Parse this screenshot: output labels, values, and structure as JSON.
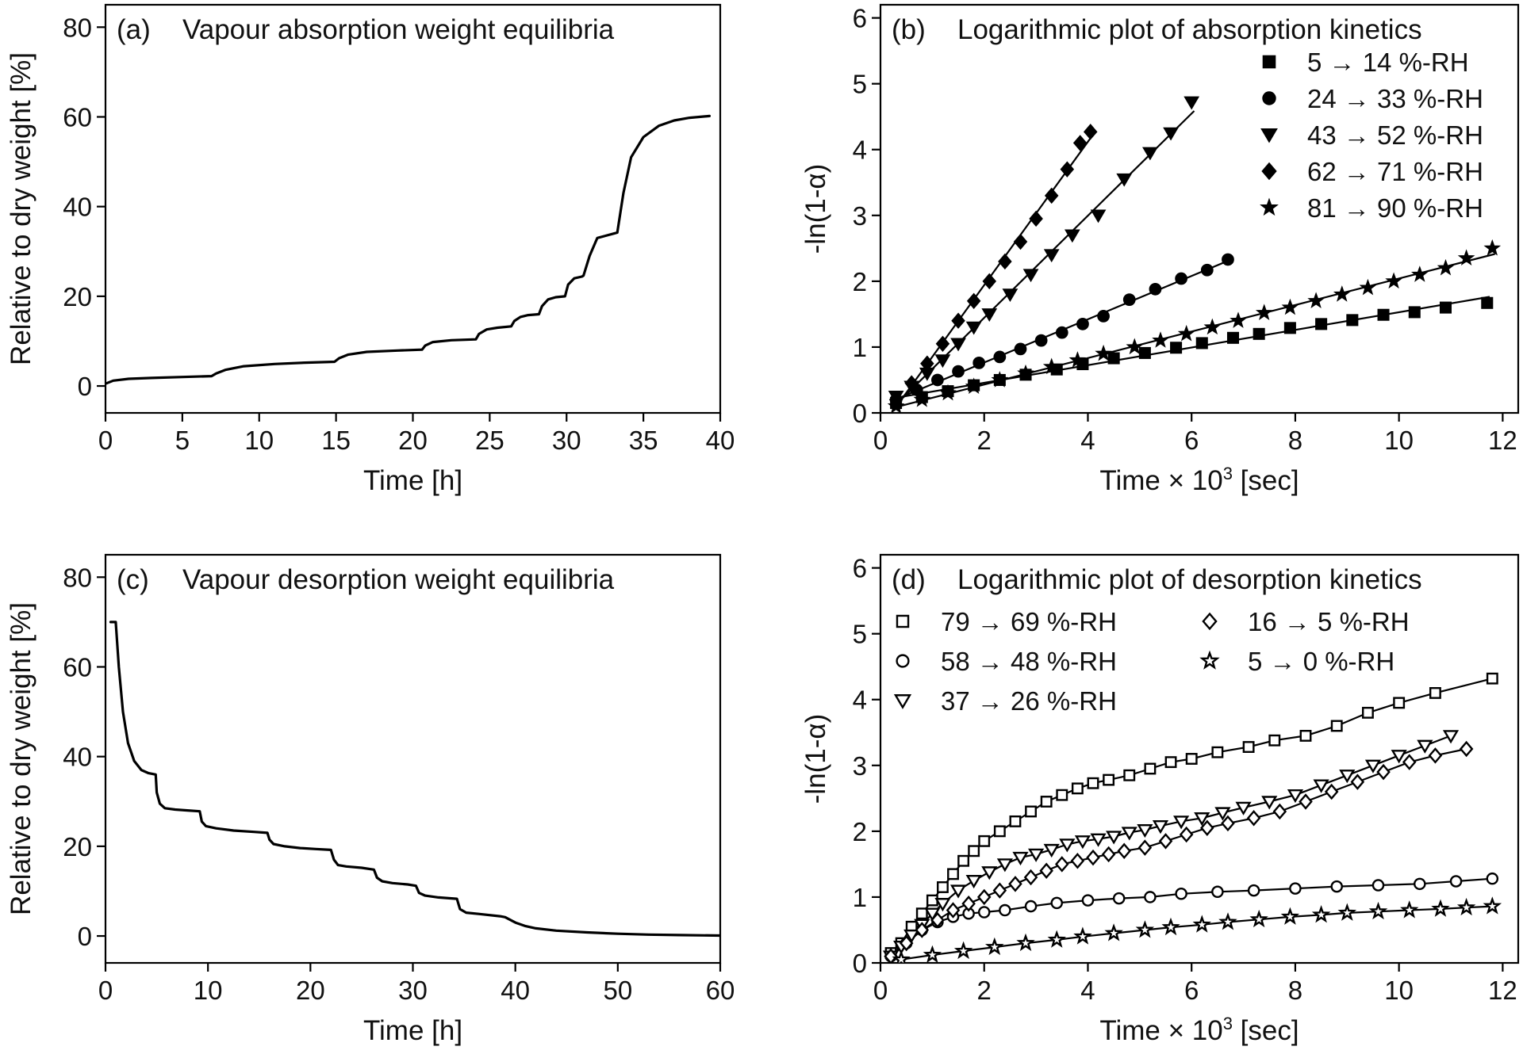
{
  "chart_data": [
    {
      "type": "line",
      "panel": "(a)",
      "title": "Vapour absorption weight equilibria",
      "xlabel": "Time [h]",
      "ylabel": "Relative to dry weight [%]",
      "xlim": [
        0,
        40
      ],
      "ylim": [
        -6,
        85
      ],
      "xticks": [
        0,
        5,
        10,
        15,
        20,
        25,
        30,
        35,
        40
      ],
      "yticks": [
        0,
        20,
        40,
        60,
        80
      ],
      "grid": false,
      "series": [
        {
          "x": [
            0,
            0.5,
            1.5,
            3,
            5,
            6.9,
            7.2,
            7.8,
            9,
            11,
            13,
            14.9,
            15.2,
            15.8,
            17,
            19,
            20.6,
            20.8,
            21.3,
            22.5,
            24.1,
            24.3,
            24.8,
            25.5,
            26.4,
            26.6,
            27,
            27.5,
            28.2,
            28.4,
            28.8,
            29.3,
            29.9,
            30.1,
            30.5,
            31,
            31.1,
            31.5,
            32,
            33.1,
            33.3,
            33.7,
            34.2,
            35,
            36,
            37,
            38,
            39.3
          ],
          "y": [
            0.5,
            1.2,
            1.6,
            1.8,
            2,
            2.2,
            2.8,
            3.6,
            4.4,
            4.9,
            5.2,
            5.4,
            6.2,
            7,
            7.6,
            7.9,
            8.1,
            9,
            9.8,
            10.2,
            10.4,
            11.6,
            12.6,
            13,
            13.3,
            14.5,
            15.4,
            15.8,
            16,
            17.8,
            19.3,
            19.8,
            20,
            22.6,
            24,
            24.4,
            24.6,
            29,
            33,
            34,
            34.2,
            43,
            51,
            55.5,
            58,
            59.2,
            59.8,
            60.2
          ]
        }
      ]
    },
    {
      "type": "scatter",
      "panel": "(b)",
      "title": "Logarithmic plot of absorption kinetics",
      "xlabel": "Time × 10",
      "xlabel_sup": "3",
      "xlabel_end": "[sec]",
      "ylabel": "-ln(1-α)",
      "xlim": [
        0,
        12.3
      ],
      "ylim": [
        0,
        6.2
      ],
      "xticks": [
        0,
        2,
        4,
        6,
        8,
        10,
        12
      ],
      "yticks": [
        0,
        1,
        2,
        3,
        4,
        5,
        6
      ],
      "grid": false,
      "legend": "top-right",
      "series": [
        {
          "name": "5 → 14 %-RH",
          "marker": "square-filled",
          "x": [
            0.3,
            0.8,
            1.3,
            1.8,
            2.3,
            2.8,
            3.4,
            3.9,
            4.5,
            5.1,
            5.7,
            6.2,
            6.8,
            7.3,
            7.9,
            8.5,
            9.1,
            9.7,
            10.3,
            10.9,
            11.7
          ],
          "y": [
            0.15,
            0.24,
            0.33,
            0.42,
            0.5,
            0.58,
            0.66,
            0.74,
            0.83,
            0.91,
            0.99,
            1.06,
            1.14,
            1.2,
            1.29,
            1.35,
            1.41,
            1.49,
            1.53,
            1.6,
            1.67
          ]
        },
        {
          "name": "24 → 33 %-RH",
          "marker": "circle-filled",
          "x": [
            0.3,
            0.7,
            1.1,
            1.5,
            1.9,
            2.3,
            2.7,
            3.1,
            3.5,
            3.9,
            4.3,
            4.8,
            5.3,
            5.8,
            6.3,
            6.7
          ],
          "y": [
            0.2,
            0.35,
            0.5,
            0.63,
            0.76,
            0.85,
            0.97,
            1.1,
            1.22,
            1.35,
            1.47,
            1.72,
            1.88,
            2.04,
            2.17,
            2.33
          ]
        },
        {
          "name": "43 → 52 %-RH",
          "marker": "triangle-down-filled",
          "x": [
            0.3,
            0.6,
            0.9,
            1.2,
            1.5,
            1.8,
            2.1,
            2.5,
            2.9,
            3.3,
            3.7,
            4.2,
            4.7,
            5.2,
            5.6,
            6.0
          ],
          "y": [
            0.25,
            0.4,
            0.6,
            0.8,
            1.05,
            1.3,
            1.5,
            1.8,
            2.1,
            2.4,
            2.7,
            3.0,
            3.55,
            3.95,
            4.25,
            4.72
          ]
        },
        {
          "name": "62 → 71 %-RH",
          "marker": "diamond-filled",
          "x": [
            0.3,
            0.6,
            0.9,
            1.2,
            1.5,
            1.8,
            2.1,
            2.4,
            2.7,
            3.0,
            3.3,
            3.6,
            3.85,
            4.05
          ],
          "y": [
            0.2,
            0.45,
            0.75,
            1.05,
            1.4,
            1.7,
            2.0,
            2.3,
            2.6,
            2.95,
            3.3,
            3.7,
            4.1,
            4.27
          ]
        },
        {
          "name": "81 → 90 %-RH",
          "marker": "star-filled",
          "x": [
            0.3,
            0.8,
            1.3,
            1.8,
            2.3,
            2.8,
            3.3,
            3.8,
            4.3,
            4.9,
            5.4,
            5.9,
            6.4,
            6.9,
            7.4,
            7.9,
            8.4,
            8.9,
            9.4,
            9.9,
            10.4,
            10.9,
            11.3,
            11.8
          ],
          "y": [
            0.1,
            0.2,
            0.3,
            0.4,
            0.5,
            0.6,
            0.7,
            0.8,
            0.9,
            1.0,
            1.1,
            1.2,
            1.3,
            1.4,
            1.52,
            1.6,
            1.7,
            1.8,
            1.9,
            2.0,
            2.1,
            2.2,
            2.35,
            2.5
          ]
        }
      ]
    },
    {
      "type": "line",
      "panel": "(c)",
      "title": "Vapour desorption weight equilibria",
      "xlabel": "Time [h]",
      "ylabel": "Relative to dry weight [%]",
      "xlim": [
        0,
        60
      ],
      "ylim": [
        -6,
        85
      ],
      "xticks": [
        0,
        10,
        20,
        30,
        40,
        50,
        60
      ],
      "yticks": [
        0,
        20,
        40,
        60,
        80
      ],
      "grid": false,
      "series": [
        {
          "x": [
            0.5,
            1.0,
            1.3,
            1.7,
            2.2,
            2.8,
            3.5,
            4.2,
            4.9,
            5.0,
            5.3,
            5.8,
            6.8,
            8,
            9.2,
            9.4,
            9.8,
            10.8,
            12.5,
            14.5,
            15.8,
            16,
            16.4,
            17.5,
            19,
            20.5,
            22,
            22.3,
            22.7,
            23.5,
            25,
            26.2,
            26.5,
            27,
            28,
            29.5,
            30.3,
            30.6,
            31.2,
            32.5,
            34.3,
            34.6,
            35.2,
            36.5,
            38.5,
            39,
            40,
            41,
            42,
            44,
            47,
            50,
            53,
            56,
            60
          ],
          "y": [
            70,
            70,
            60,
            50,
            43,
            39,
            37,
            36.3,
            36,
            32,
            29.5,
            28.5,
            28.2,
            28,
            27.8,
            25.5,
            24.5,
            24,
            23.5,
            23.2,
            23,
            21.5,
            20.5,
            20,
            19.6,
            19.4,
            19.2,
            17,
            15.8,
            15.5,
            15.2,
            14.8,
            13,
            12.2,
            11.8,
            11.5,
            11.2,
            9.6,
            9,
            8.6,
            8.3,
            6,
            5.2,
            4.9,
            4.4,
            4.2,
            3,
            2.2,
            1.7,
            1.2,
            0.8,
            0.5,
            0.3,
            0.2,
            0.1
          ]
        }
      ]
    },
    {
      "type": "scatter",
      "panel": "(d)",
      "title": "Logarithmic plot of desorption kinetics",
      "xlabel": "Time × 10",
      "xlabel_sup": "3",
      "xlabel_end": "[sec]",
      "ylabel": "-ln(1-α)",
      "xlim": [
        0,
        12.3
      ],
      "ylim": [
        0,
        6.2
      ],
      "xticks": [
        0,
        2,
        4,
        6,
        8,
        10,
        12
      ],
      "yticks": [
        0,
        1,
        2,
        3,
        4,
        5,
        6
      ],
      "grid": false,
      "legend": "top-left, two columns",
      "series": [
        {
          "name": "79 → 69 %-RH",
          "marker": "square-open",
          "x": [
            0.2,
            0.4,
            0.6,
            0.8,
            1.0,
            1.2,
            1.4,
            1.6,
            1.8,
            2.0,
            2.3,
            2.6,
            2.9,
            3.2,
            3.5,
            3.8,
            4.1,
            4.4,
            4.8,
            5.2,
            5.6,
            6.0,
            6.5,
            7.1,
            7.6,
            8.2,
            8.8,
            9.4,
            10.0,
            10.7,
            11.8
          ],
          "y": [
            0.15,
            0.3,
            0.55,
            0.75,
            0.95,
            1.15,
            1.35,
            1.55,
            1.7,
            1.85,
            2.0,
            2.15,
            2.3,
            2.45,
            2.55,
            2.65,
            2.73,
            2.78,
            2.85,
            2.95,
            3.05,
            3.1,
            3.2,
            3.28,
            3.38,
            3.45,
            3.6,
            3.8,
            3.95,
            4.1,
            4.32
          ]
        },
        {
          "name": "58 → 48 %-RH",
          "marker": "circle-open",
          "x": [
            0.2,
            0.5,
            0.8,
            1.1,
            1.4,
            1.7,
            2.0,
            2.4,
            2.9,
            3.4,
            4.0,
            4.6,
            5.2,
            5.8,
            6.5,
            7.2,
            8.0,
            8.8,
            9.6,
            10.4,
            11.1,
            11.8
          ],
          "y": [
            0.1,
            0.3,
            0.5,
            0.62,
            0.7,
            0.75,
            0.77,
            0.8,
            0.86,
            0.91,
            0.95,
            0.98,
            1.0,
            1.05,
            1.08,
            1.1,
            1.13,
            1.16,
            1.18,
            1.2,
            1.24,
            1.28
          ]
        },
        {
          "name": "37 → 26 %-RH",
          "marker": "triangle-down-open",
          "x": [
            0.2,
            0.4,
            0.6,
            0.8,
            1.0,
            1.2,
            1.5,
            1.8,
            2.1,
            2.4,
            2.7,
            3.0,
            3.3,
            3.6,
            3.9,
            4.2,
            4.5,
            4.8,
            5.1,
            5.4,
            5.8,
            6.2,
            6.6,
            7.0,
            7.5,
            8.0,
            8.5,
            9.0,
            9.5,
            10.0,
            10.5,
            11.0
          ],
          "y": [
            0.1,
            0.25,
            0.42,
            0.58,
            0.75,
            0.9,
            1.1,
            1.25,
            1.38,
            1.5,
            1.6,
            1.65,
            1.72,
            1.8,
            1.85,
            1.88,
            1.92,
            1.98,
            2.02,
            2.08,
            2.15,
            2.2,
            2.28,
            2.36,
            2.45,
            2.55,
            2.7,
            2.85,
            3.0,
            3.15,
            3.3,
            3.45
          ]
        },
        {
          "name": "16 → 5 %-RH",
          "marker": "diamond-open",
          "x": [
            0.2,
            0.5,
            0.8,
            1.1,
            1.4,
            1.7,
            2.0,
            2.3,
            2.6,
            2.9,
            3.2,
            3.5,
            3.8,
            4.1,
            4.4,
            4.7,
            5.1,
            5.5,
            5.9,
            6.3,
            6.7,
            7.2,
            7.7,
            8.2,
            8.7,
            9.2,
            9.7,
            10.2,
            10.7,
            11.3
          ],
          "y": [
            0.1,
            0.3,
            0.5,
            0.65,
            0.8,
            0.9,
            1.0,
            1.1,
            1.2,
            1.3,
            1.4,
            1.5,
            1.55,
            1.6,
            1.65,
            1.7,
            1.75,
            1.85,
            1.95,
            2.05,
            2.12,
            2.2,
            2.3,
            2.45,
            2.6,
            2.75,
            2.9,
            3.05,
            3.15,
            3.25
          ]
        },
        {
          "name": "5 → 0 %-RH",
          "marker": "star-open",
          "x": [
            0.4,
            1.0,
            1.6,
            2.2,
            2.8,
            3.4,
            3.9,
            4.5,
            5.1,
            5.6,
            6.2,
            6.7,
            7.3,
            7.9,
            8.5,
            9.0,
            9.6,
            10.2,
            10.8,
            11.3,
            11.8
          ],
          "y": [
            0.05,
            0.12,
            0.18,
            0.24,
            0.3,
            0.35,
            0.4,
            0.45,
            0.5,
            0.54,
            0.58,
            0.62,
            0.66,
            0.7,
            0.73,
            0.76,
            0.78,
            0.8,
            0.82,
            0.84,
            0.86
          ]
        }
      ]
    }
  ]
}
